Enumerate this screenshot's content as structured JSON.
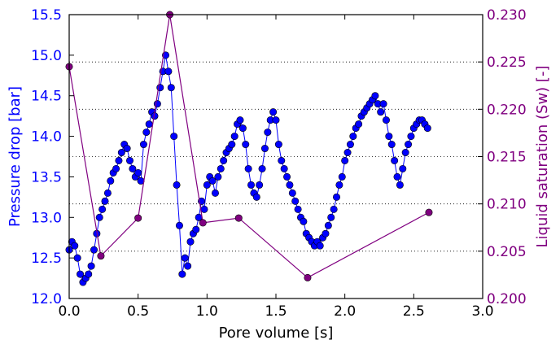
{
  "chart_data": {
    "type": "scatter",
    "title": "",
    "xlabel": "Pore volume [s]",
    "ylabel_left": "Pressure drop [bar]",
    "ylabel_right": "Liquid saturation (Sw) [-]",
    "xlim": [
      0.0,
      3.0
    ],
    "ylim_left": [
      12.0,
      15.5
    ],
    "ylim_right": [
      0.2,
      0.23
    ],
    "x_ticks": [
      "0.0",
      "0.5",
      "1.0",
      "1.5",
      "2.0",
      "2.5",
      "3.0"
    ],
    "y_left_ticks": [
      "12.0",
      "12.5",
      "13.0",
      "13.5",
      "14.0",
      "14.5",
      "15.0",
      "15.5"
    ],
    "y_right_ticks": [
      "0.200",
      "0.205",
      "0.210",
      "0.215",
      "0.220",
      "0.225",
      "0.230"
    ],
    "grid": "right-axis horizontal dotted",
    "colors": {
      "left_axis": "#0000ff",
      "right_axis": "#800080",
      "pressure_marker": "#0000ff",
      "saturation_line": "#800080"
    },
    "series": [
      {
        "axis": "left",
        "style": "markers+thin-line",
        "x": [
          0.0,
          0.02,
          0.04,
          0.06,
          0.08,
          0.1,
          0.12,
          0.14,
          0.16,
          0.18,
          0.2,
          0.22,
          0.24,
          0.26,
          0.28,
          0.3,
          0.32,
          0.34,
          0.36,
          0.38,
          0.4,
          0.42,
          0.44,
          0.46,
          0.48,
          0.5,
          0.52,
          0.54,
          0.56,
          0.58,
          0.6,
          0.62,
          0.64,
          0.66,
          0.68,
          0.7,
          0.72,
          0.74,
          0.76,
          0.78,
          0.8,
          0.82,
          0.84,
          0.86,
          0.88,
          0.9,
          0.92,
          0.94,
          0.96,
          0.98,
          1.0,
          1.02,
          1.04,
          1.06,
          1.08,
          1.1,
          1.12,
          1.14,
          1.16,
          1.18,
          1.2,
          1.22,
          1.24,
          1.26,
          1.28,
          1.3,
          1.32,
          1.34,
          1.36,
          1.38,
          1.4,
          1.42,
          1.44,
          1.46,
          1.48,
          1.5,
          1.52,
          1.54,
          1.56,
          1.58,
          1.6,
          1.62,
          1.64,
          1.66,
          1.68,
          1.7,
          1.72,
          1.74,
          1.76,
          1.78,
          1.8,
          1.82,
          1.84,
          1.86,
          1.88,
          1.9,
          1.92,
          1.94,
          1.96,
          1.98,
          2.0,
          2.02,
          2.04,
          2.06,
          2.08,
          2.1,
          2.12,
          2.14,
          2.16,
          2.18,
          2.2,
          2.22,
          2.24,
          2.26,
          2.28,
          2.3,
          2.32,
          2.34,
          2.36,
          2.38,
          2.4,
          2.42,
          2.44,
          2.46,
          2.48,
          2.5,
          2.52,
          2.54,
          2.56,
          2.58,
          2.6
        ],
        "y": [
          12.6,
          12.7,
          12.65,
          12.5,
          12.3,
          12.2,
          12.25,
          12.3,
          12.4,
          12.6,
          12.8,
          13.0,
          13.1,
          13.2,
          13.3,
          13.45,
          13.55,
          13.6,
          13.7,
          13.8,
          13.9,
          13.85,
          13.7,
          13.6,
          13.5,
          13.55,
          13.45,
          13.9,
          14.05,
          14.15,
          14.3,
          14.25,
          14.4,
          14.6,
          14.8,
          15.0,
          14.8,
          14.6,
          14.0,
          13.4,
          12.9,
          12.3,
          12.5,
          12.4,
          12.7,
          12.8,
          12.85,
          13.0,
          13.2,
          13.1,
          13.4,
          13.5,
          13.45,
          13.3,
          13.5,
          13.6,
          13.7,
          13.8,
          13.85,
          13.9,
          14.0,
          14.15,
          14.2,
          14.1,
          13.9,
          13.6,
          13.4,
          13.3,
          13.25,
          13.4,
          13.6,
          13.85,
          14.05,
          14.2,
          14.3,
          14.2,
          13.9,
          13.7,
          13.6,
          13.5,
          13.4,
          13.3,
          13.2,
          13.1,
          13.0,
          12.95,
          12.8,
          12.75,
          12.7,
          12.65,
          12.7,
          12.65,
          12.75,
          12.8,
          12.9,
          13.0,
          13.1,
          13.25,
          13.4,
          13.5,
          13.7,
          13.8,
          13.9,
          14.0,
          14.1,
          14.15,
          14.25,
          14.3,
          14.35,
          14.4,
          14.45,
          14.5,
          14.4,
          14.3,
          14.4,
          14.2,
          14.0,
          13.9,
          13.7,
          13.5,
          13.4,
          13.6,
          13.8,
          13.9,
          14.0,
          14.1,
          14.15,
          14.2,
          14.2,
          14.15,
          14.1
        ]
      },
      {
        "axis": "right",
        "style": "line+markers",
        "x": [
          0.0,
          0.23,
          0.5,
          0.73,
          0.97,
          1.23,
          1.73,
          2.61
        ],
        "y": [
          0.2245,
          0.2045,
          0.2085,
          0.23,
          0.208,
          0.2085,
          0.2022,
          0.2091
        ]
      }
    ]
  }
}
